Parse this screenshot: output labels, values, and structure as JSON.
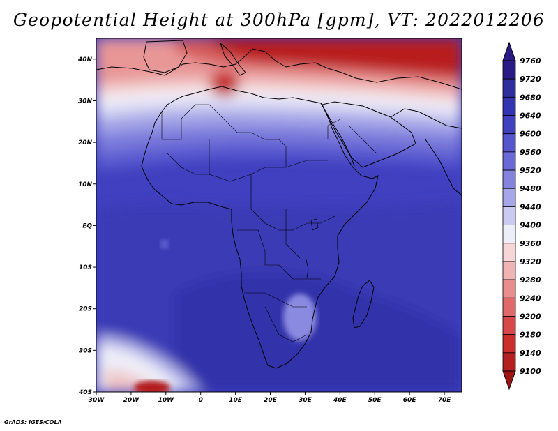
{
  "title": "Geopotential Height at 300hPa [gpm], VT: 2022012206",
  "credit": "GrADS: IGES/COLA",
  "map": {
    "projection": "lat-lon",
    "lon_range": [
      -30,
      75
    ],
    "lat_range": [
      -40,
      45
    ],
    "lon_ticks": [
      "30W",
      "20W",
      "10W",
      "0",
      "10E",
      "20E",
      "30E",
      "40E",
      "50E",
      "60E",
      "70E"
    ],
    "lat_ticks": [
      "40N",
      "30N",
      "20N",
      "10N",
      "EQ",
      "10S",
      "20S",
      "30S",
      "40S"
    ],
    "lon_tick_values": [
      -30,
      -20,
      -10,
      0,
      10,
      20,
      30,
      40,
      50,
      60,
      70
    ],
    "lat_tick_values": [
      40,
      30,
      20,
      10,
      0,
      -10,
      -20,
      -30,
      -40
    ]
  },
  "colorbar": {
    "levels": [
      "9760",
      "9720",
      "9680",
      "9640",
      "9600",
      "9560",
      "9520",
      "9480",
      "9440",
      "9400",
      "9360",
      "9320",
      "9280",
      "9240",
      "9200",
      "9180",
      "9140",
      "9100"
    ],
    "colors": [
      "#2a1a86",
      "#2e2ea0",
      "#3434b2",
      "#4040c0",
      "#5555cc",
      "#6a6ad6",
      "#8484de",
      "#a6a6e8",
      "#cbcbf2",
      "#eeeef8",
      "#f6d6d6",
      "#f0b4b4",
      "#e88e8e",
      "#e06a6a",
      "#d84848",
      "#cc2e2e",
      "#b41f1f",
      "#9c1414"
    ]
  },
  "field_colors": {
    "deep_south_high": "#3434b2",
    "south_high": "#3a3ab6",
    "tropics": "#4848c2",
    "north_red_dark": "#b41f1f",
    "north_red": "#e06a6a",
    "white": "#f2f2fa",
    "land_outline": "#000000"
  }
}
